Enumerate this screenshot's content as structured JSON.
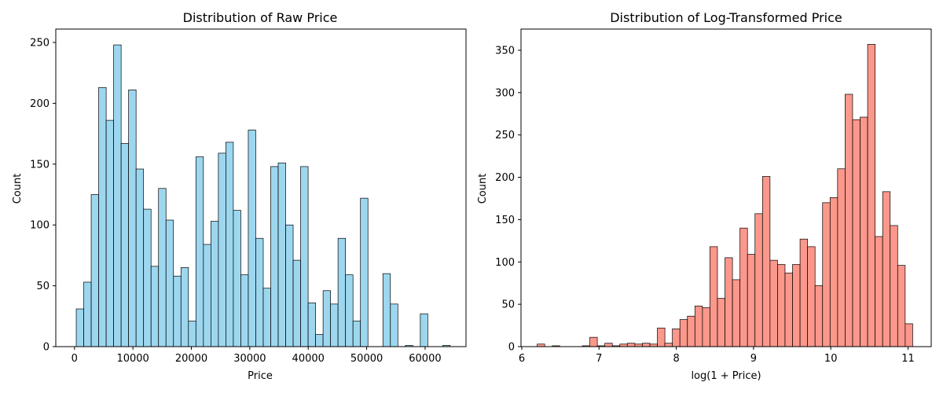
{
  "chart_data": [
    {
      "type": "bar",
      "title": "Distribution of Raw Price",
      "xlabel": "Price",
      "ylabel": "Count",
      "xlim": [
        -3200,
        67000
      ],
      "ylim": [
        0,
        261
      ],
      "xticks": [
        0,
        10000,
        20000,
        30000,
        40000,
        50000,
        60000
      ],
      "xtick_labels": [
        "0",
        "10000",
        "20000",
        "30000",
        "40000",
        "50000",
        "60000"
      ],
      "yticks": [
        0,
        50,
        100,
        150,
        200,
        250
      ],
      "ytick_labels": [
        "0",
        "50",
        "100",
        "150",
        "200",
        "250"
      ],
      "bin_start": 300,
      "bin_width": 1280,
      "values": [
        31,
        53,
        125,
        213,
        186,
        248,
        167,
        211,
        146,
        113,
        66,
        130,
        104,
        58,
        65,
        21,
        156,
        84,
        103,
        159,
        168,
        112,
        59,
        178,
        89,
        48,
        148,
        151,
        100,
        71,
        148,
        36,
        10,
        46,
        35,
        89,
        59,
        21,
        122,
        0,
        0,
        60,
        35,
        0,
        1,
        0,
        27,
        0,
        0,
        1
      ],
      "bar_color": "#87ceeb",
      "edge_color": "#000000",
      "grid": false
    },
    {
      "type": "bar",
      "title": "Distribution of Log-Transformed Price",
      "xlabel": "log(1 + Price)",
      "ylabel": "Count",
      "xlim": [
        5.99,
        11.3
      ],
      "ylim": [
        0,
        375
      ],
      "xticks": [
        6,
        7,
        8,
        9,
        10,
        11
      ],
      "xtick_labels": [
        "6",
        "7",
        "8",
        "9",
        "10",
        "11"
      ],
      "yticks": [
        0,
        50,
        100,
        150,
        200,
        250,
        300,
        350
      ],
      "ytick_labels": [
        "0",
        "50",
        "100",
        "150",
        "200",
        "250",
        "300",
        "350"
      ],
      "bin_start": 6.2,
      "bin_width": 0.0972,
      "values": [
        3,
        0,
        1,
        0,
        0,
        0,
        1,
        11,
        1,
        4,
        1,
        3,
        4,
        3,
        4,
        3,
        22,
        4,
        21,
        32,
        36,
        48,
        46,
        118,
        57,
        105,
        79,
        140,
        109,
        157,
        201,
        102,
        97,
        87,
        97,
        127,
        118,
        72,
        170,
        176,
        210,
        298,
        268,
        271,
        357,
        130,
        183,
        143,
        96,
        27
      ],
      "bar_color": "#fa8072",
      "edge_color": "#000000",
      "grid": false
    }
  ]
}
